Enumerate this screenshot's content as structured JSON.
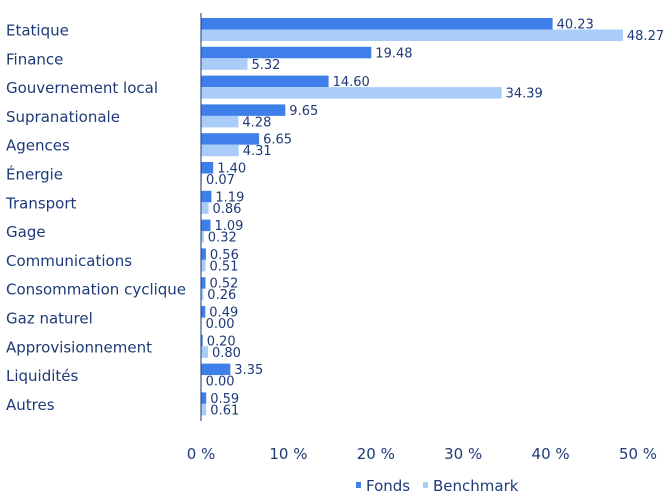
{
  "chart_data": {
    "type": "bar",
    "orientation": "horizontal",
    "categories": [
      "Etatique",
      "Finance",
      "Gouvernement local",
      "Supranationale",
      "Agences",
      "Énergie",
      "Transport",
      "Gage",
      "Communications",
      "Consommation cyclique",
      "Gaz naturel",
      "Approvisionnement",
      "Liquidités",
      "Autres"
    ],
    "series": [
      {
        "name": "Fonds",
        "color": "#3f7fea",
        "values": [
          40.23,
          19.48,
          14.6,
          9.65,
          6.65,
          1.4,
          1.19,
          1.09,
          0.56,
          0.52,
          0.49,
          0.2,
          3.35,
          0.59
        ],
        "labels": [
          "40.23",
          "19.48",
          "14.60",
          "9.65",
          "6.65",
          "1.40",
          "1.19",
          "1.09",
          "0.56",
          "0.52",
          "0.49",
          "0.20",
          "3.35",
          "0.59"
        ]
      },
      {
        "name": "Benchmark",
        "color": "#a9cdf8",
        "values": [
          48.27,
          5.32,
          34.39,
          4.28,
          4.31,
          0.07,
          0.86,
          0.32,
          0.51,
          0.26,
          0.0,
          0.8,
          0.0,
          0.61
        ],
        "labels": [
          "48.27",
          "5.32",
          "34.39",
          "4.28",
          "4.31",
          "0.07",
          "0.86",
          "0.32",
          "0.51",
          "0.26",
          "0.00",
          "0.80",
          "0.00",
          "0.61"
        ]
      }
    ],
    "xlim": [
      0,
      50
    ],
    "xticks": [
      0,
      10,
      20,
      30,
      40,
      50
    ],
    "xtick_labels": [
      "0 %",
      "10 %",
      "20 %",
      "30 %",
      "40 %",
      "50 %"
    ],
    "legend_position": "bottom-center",
    "grid": false
  }
}
